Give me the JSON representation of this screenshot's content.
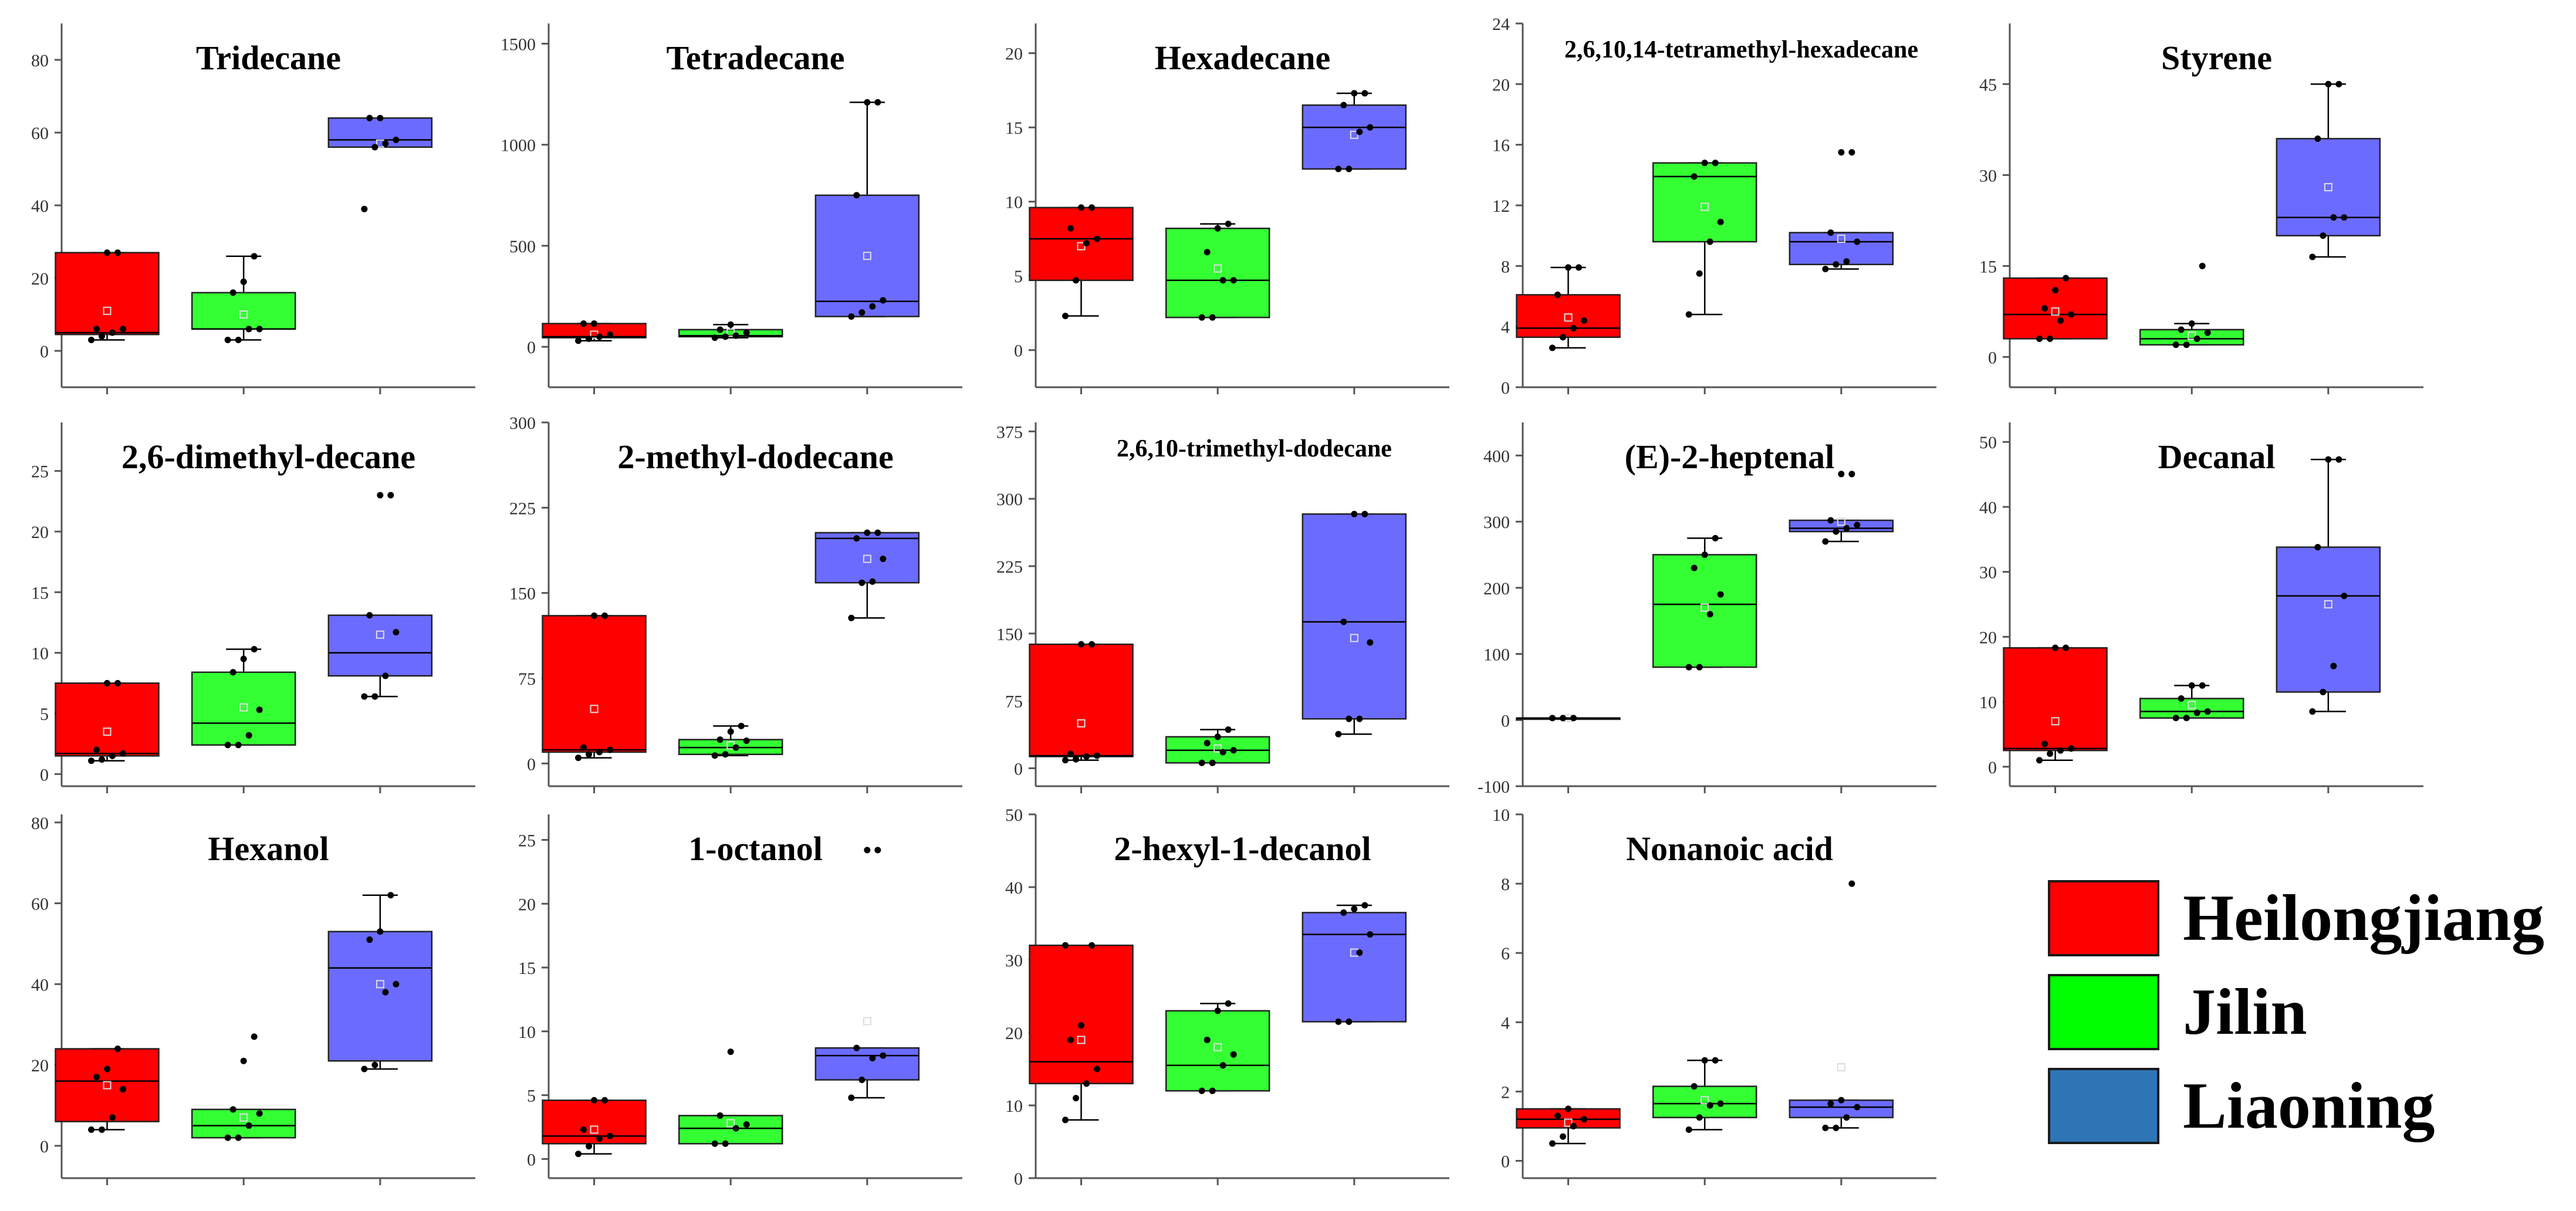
{
  "legend": [
    {
      "label": "Heilongjiang",
      "color": "#ff0000"
    },
    {
      "label": "Jilin",
      "color": "#00ff00"
    },
    {
      "label": "Liaoning",
      "color": "#2e75b6"
    }
  ],
  "box_colors": [
    "#ff0000",
    "#33ff33",
    "#6b6bff"
  ],
  "chart_data": [
    {
      "type": "box",
      "title": "Tridecane",
      "ylim": [
        -10,
        90
      ],
      "yticks": [
        0,
        20,
        40,
        60,
        80
      ],
      "groups": [
        "Heilongjiang",
        "Jilin",
        "Liaoning"
      ],
      "boxes": [
        {
          "min": 3,
          "q1": 4.5,
          "median": 5,
          "q3": 27,
          "max": 27,
          "mean": 11,
          "points": [
            3,
            4,
            5,
            6,
            6,
            27,
            27
          ]
        },
        {
          "min": 3,
          "q1": 6,
          "median": 6,
          "q3": 16,
          "max": 26,
          "mean": 10,
          "points": [
            3,
            3,
            6,
            6,
            16,
            19,
            26
          ]
        },
        {
          "min": 56,
          "q1": 56,
          "median": 58,
          "q3": 64,
          "max": 64,
          "mean": 57,
          "points": [
            39,
            56,
            57,
            58,
            64,
            64
          ]
        }
      ]
    },
    {
      "type": "box",
      "title": "Tetradecane",
      "ylim": [
        -200,
        1600
      ],
      "yticks": [
        0,
        500,
        1000,
        1500
      ],
      "groups": [
        "Heilongjiang",
        "Jilin",
        "Liaoning"
      ],
      "boxes": [
        {
          "min": 30,
          "q1": 45,
          "median": 50,
          "q3": 115,
          "max": 115,
          "mean": 60,
          "points": [
            30,
            40,
            50,
            60,
            115,
            115
          ]
        },
        {
          "min": 45,
          "q1": 50,
          "median": 55,
          "q3": 85,
          "max": 110,
          "mean": 70,
          "points": [
            45,
            50,
            55,
            70,
            85,
            110
          ]
        },
        {
          "min": 150,
          "q1": 150,
          "median": 225,
          "q3": 750,
          "max": 1210,
          "mean": 450,
          "points": [
            150,
            170,
            200,
            230,
            750,
            1210,
            1210
          ]
        }
      ]
    },
    {
      "type": "box",
      "title": "Hexadecane",
      "ylim": [
        -2.5,
        22
      ],
      "yticks": [
        0,
        5,
        10,
        15,
        20
      ],
      "groups": [
        "Heilongjiang",
        "Jilin",
        "Liaoning"
      ],
      "boxes": [
        {
          "min": 2.3,
          "q1": 4.7,
          "median": 7.5,
          "q3": 9.6,
          "max": 9.6,
          "mean": 7,
          "points": [
            2.3,
            4.7,
            7.2,
            7.5,
            8.2,
            9.6,
            9.6
          ]
        },
        {
          "min": 2.2,
          "q1": 2.2,
          "median": 4.7,
          "q3": 8.2,
          "max": 8.5,
          "mean": 5.5,
          "points": [
            2.2,
            2.2,
            4.7,
            4.7,
            6.6,
            8.2,
            8.5
          ]
        },
        {
          "min": 12.2,
          "q1": 12.2,
          "median": 15,
          "q3": 16.5,
          "max": 17.3,
          "mean": 14.5,
          "points": [
            12.2,
            12.2,
            14.7,
            15,
            16.5,
            17.3,
            17.3
          ]
        }
      ]
    },
    {
      "type": "box",
      "title": "2,6,10,14-tetramethyl-hexadecane",
      "ylim": [
        0,
        24
      ],
      "yticks": [
        0,
        4,
        8,
        12,
        16,
        20,
        24
      ],
      "groups": [
        "Heilongjiang",
        "Jilin",
        "Liaoning"
      ],
      "boxes": [
        {
          "min": 2.6,
          "q1": 3.3,
          "median": 3.9,
          "q3": 6.1,
          "max": 7.9,
          "mean": 4.6,
          "points": [
            2.6,
            3.3,
            3.9,
            4.4,
            6.1,
            7.9,
            7.9
          ]
        },
        {
          "min": 4.8,
          "q1": 9.6,
          "median": 13.9,
          "q3": 14.8,
          "max": 14.8,
          "mean": 11.9,
          "points": [
            4.8,
            7.5,
            9.6,
            10.9,
            13.9,
            14.8,
            14.8
          ]
        },
        {
          "min": 7.8,
          "q1": 8.1,
          "median": 9.6,
          "q3": 10.2,
          "max": 10.2,
          "mean": 9.8,
          "points": [
            7.8,
            8.1,
            8.3,
            9.6,
            10.2,
            15.5,
            15.5
          ]
        }
      ]
    },
    {
      "type": "box",
      "title": "Styrene",
      "ylim": [
        -5,
        55
      ],
      "yticks": [
        0,
        15,
        30,
        45
      ],
      "groups": [
        "Heilongjiang",
        "Jilin",
        "Liaoning"
      ],
      "boxes": [
        {
          "min": 3,
          "q1": 3,
          "median": 7,
          "q3": 13,
          "max": 13,
          "mean": 7.5,
          "points": [
            3,
            3,
            6,
            7,
            8,
            11,
            13
          ]
        },
        {
          "min": 2,
          "q1": 2,
          "median": 3,
          "q3": 4.5,
          "max": 5.5,
          "mean": 3.5,
          "points": [
            2,
            2,
            3,
            4,
            4.5,
            5.5,
            15
          ]
        },
        {
          "min": 16.5,
          "q1": 20,
          "median": 23,
          "q3": 36,
          "max": 45,
          "mean": 28,
          "points": [
            16.5,
            20,
            23,
            23,
            36,
            45,
            45
          ]
        }
      ]
    },
    {
      "type": "box",
      "title": "2,6-dimethyl-decane",
      "ylim": [
        -1,
        29
      ],
      "yticks": [
        0,
        5,
        10,
        15,
        20,
        25
      ],
      "groups": [
        "Heilongjiang",
        "Jilin",
        "Liaoning"
      ],
      "boxes": [
        {
          "min": 1.1,
          "q1": 1.5,
          "median": 1.7,
          "q3": 7.5,
          "max": 7.5,
          "mean": 3.5,
          "points": [
            1.1,
            1.2,
            1.5,
            1.7,
            2,
            7.5,
            7.5
          ]
        },
        {
          "min": 2.4,
          "q1": 2.4,
          "median": 4.2,
          "q3": 8.4,
          "max": 10.3,
          "mean": 5.5,
          "points": [
            2.4,
            2.4,
            3.2,
            5.3,
            8.4,
            9.5,
            10.3
          ]
        },
        {
          "min": 6.4,
          "q1": 8.1,
          "median": 10,
          "q3": 13.1,
          "max": 13.1,
          "mean": 11.5,
          "points": [
            6.4,
            6.4,
            8.1,
            11.7,
            13.1,
            23,
            23
          ]
        }
      ]
    },
    {
      "type": "box",
      "title": "2-methyl-dodecane",
      "ylim": [
        -20,
        300
      ],
      "yticks": [
        0,
        75,
        150,
        225,
        300
      ],
      "groups": [
        "Heilongjiang",
        "Jilin",
        "Liaoning"
      ],
      "boxes": [
        {
          "min": 5,
          "q1": 10,
          "median": 12,
          "q3": 130,
          "max": 130,
          "mean": 48,
          "points": [
            5,
            8,
            10,
            12,
            14,
            130,
            130
          ]
        },
        {
          "min": 7,
          "q1": 8,
          "median": 14,
          "q3": 21,
          "max": 33,
          "mean": 16,
          "points": [
            7,
            8,
            14,
            20,
            21,
            28,
            33
          ]
        },
        {
          "min": 128,
          "q1": 159,
          "median": 198,
          "q3": 203,
          "max": 203,
          "mean": 180,
          "points": [
            128,
            159,
            160,
            180,
            198,
            203,
            203
          ]
        }
      ]
    },
    {
      "type": "box",
      "title": "2,6,10-trimethyl-dodecane",
      "ylim": [
        -20,
        385
      ],
      "yticks": [
        0,
        75,
        150,
        225,
        300,
        375
      ],
      "groups": [
        "Heilongjiang",
        "Jilin",
        "Liaoning"
      ],
      "boxes": [
        {
          "min": 9,
          "q1": 13,
          "median": 14,
          "q3": 138,
          "max": 138,
          "mean": 50,
          "points": [
            9,
            10,
            13,
            14,
            16,
            138,
            138
          ]
        },
        {
          "min": 6,
          "q1": 6,
          "median": 20,
          "q3": 35,
          "max": 43,
          "mean": 22,
          "points": [
            6,
            6,
            18,
            20,
            28,
            35,
            43
          ]
        },
        {
          "min": 38,
          "q1": 55,
          "median": 163,
          "q3": 283,
          "max": 283,
          "mean": 145,
          "points": [
            38,
            55,
            55,
            140,
            163,
            283,
            283
          ]
        }
      ]
    },
    {
      "type": "box",
      "title": "(E)-2-heptenal",
      "ylim": [
        -100,
        450
      ],
      "yticks": [
        -100,
        0,
        100,
        200,
        300,
        400
      ],
      "groups": [
        "Heilongjiang",
        "Jilin",
        "Liaoning"
      ],
      "boxes": [
        {
          "min": 3,
          "q1": 3,
          "median": 3,
          "q3": 3,
          "max": 3,
          "mean": 3,
          "points": [
            3,
            3,
            3
          ]
        },
        {
          "min": 80,
          "q1": 80,
          "median": 175,
          "q3": 250,
          "max": 275,
          "mean": 170,
          "points": [
            80,
            80,
            160,
            190,
            230,
            250,
            275
          ]
        },
        {
          "min": 270,
          "q1": 285,
          "median": 290,
          "q3": 302,
          "max": 302,
          "mean": 300,
          "points": [
            270,
            285,
            290,
            295,
            302,
            372,
            372
          ]
        }
      ]
    },
    {
      "type": "box",
      "title": "Decanal",
      "ylim": [
        -3,
        53
      ],
      "yticks": [
        0,
        10,
        20,
        30,
        40,
        50
      ],
      "groups": [
        "Heilongjiang",
        "Jilin",
        "Liaoning"
      ],
      "boxes": [
        {
          "min": 1,
          "q1": 2.5,
          "median": 2.8,
          "q3": 18.3,
          "max": 18.3,
          "mean": 7,
          "points": [
            1,
            2,
            2.5,
            2.8,
            3.5,
            18.3,
            18.3
          ]
        },
        {
          "min": 7.5,
          "q1": 7.5,
          "median": 8.5,
          "q3": 10.5,
          "max": 12.5,
          "mean": 9.5,
          "points": [
            7.5,
            7.5,
            8.3,
            8.5,
            10.5,
            12.5,
            12.5
          ]
        },
        {
          "min": 8.5,
          "q1": 11.5,
          "median": 26.3,
          "q3": 33.8,
          "max": 47.3,
          "mean": 25,
          "points": [
            8.5,
            11.5,
            15.5,
            26.3,
            33.8,
            47.3,
            47.3
          ]
        }
      ]
    },
    {
      "type": "box",
      "title": "Hexanol",
      "ylim": [
        -8,
        82
      ],
      "yticks": [
        0,
        20,
        40,
        60,
        80
      ],
      "groups": [
        "Heilongjiang",
        "Jilin",
        "Liaoning"
      ],
      "boxes": [
        {
          "min": 4,
          "q1": 6,
          "median": 16,
          "q3": 24,
          "max": 24,
          "mean": 15,
          "points": [
            4,
            4,
            7,
            14,
            17,
            19,
            24
          ]
        },
        {
          "min": 2,
          "q1": 2,
          "median": 5,
          "q3": 9,
          "max": 9,
          "mean": 7,
          "points": [
            2,
            2,
            5,
            8,
            9,
            21,
            27
          ]
        },
        {
          "min": 19,
          "q1": 21,
          "median": 44,
          "q3": 53,
          "max": 62,
          "mean": 40,
          "points": [
            19,
            20,
            38,
            40,
            51,
            53,
            62
          ]
        }
      ]
    },
    {
      "type": "box",
      "title": "1-octanol",
      "ylim": [
        -1.5,
        27
      ],
      "yticks": [
        0,
        5,
        10,
        15,
        20,
        25
      ],
      "groups": [
        "Heilongjiang",
        "Jilin",
        "Liaoning"
      ],
      "boxes": [
        {
          "min": 0.4,
          "q1": 1.2,
          "median": 1.8,
          "q3": 4.6,
          "max": 4.6,
          "mean": 2.3,
          "points": [
            0.4,
            1,
            1.6,
            1.8,
            2.3,
            4.6,
            4.6
          ]
        },
        {
          "min": 1.2,
          "q1": 1.2,
          "median": 2.4,
          "q3": 3.4,
          "max": 3.4,
          "mean": 2.8,
          "points": [
            1.2,
            1.2,
            2.4,
            2.7,
            3.4,
            8.4
          ]
        },
        {
          "min": 4.8,
          "q1": 6.2,
          "median": 8.1,
          "q3": 8.7,
          "max": 8.7,
          "mean": 10.8,
          "points": [
            4.8,
            6.2,
            7.9,
            8.1,
            8.7,
            24.2,
            24.2
          ]
        }
      ]
    },
    {
      "type": "box",
      "title": "2-hexyl-1-decanol",
      "ylim": [
        0,
        50
      ],
      "yticks": [
        0,
        10,
        20,
        30,
        40,
        50
      ],
      "groups": [
        "Heilongjiang",
        "Jilin",
        "Liaoning"
      ],
      "boxes": [
        {
          "min": 8,
          "q1": 13,
          "median": 16,
          "q3": 32,
          "max": 32,
          "mean": 19,
          "points": [
            8,
            11,
            13,
            15,
            19,
            21,
            32,
            32
          ]
        },
        {
          "min": 12,
          "q1": 12,
          "median": 15.5,
          "q3": 23,
          "max": 24,
          "mean": 18,
          "points": [
            12,
            12,
            15.5,
            17,
            19,
            23,
            24
          ]
        },
        {
          "min": 21.5,
          "q1": 21.5,
          "median": 33.5,
          "q3": 36.5,
          "max": 37.5,
          "mean": 31,
          "points": [
            21.5,
            21.5,
            31,
            33.5,
            36.5,
            37,
            37.5
          ]
        }
      ]
    },
    {
      "type": "box",
      "title": "Nonanoic acid",
      "ylim": [
        -0.5,
        10
      ],
      "yticks": [
        0,
        2,
        4,
        6,
        8,
        10
      ],
      "groups": [
        "Heilongjiang",
        "Jilin",
        "Liaoning"
      ],
      "boxes": [
        {
          "min": 0.5,
          "q1": 0.95,
          "median": 1.2,
          "q3": 1.5,
          "max": 1.5,
          "mean": 1.1,
          "points": [
            0.5,
            0.7,
            1,
            1.2,
            1.3,
            1.5
          ]
        },
        {
          "min": 0.9,
          "q1": 1.25,
          "median": 1.65,
          "q3": 2.15,
          "max": 2.9,
          "mean": 1.75,
          "points": [
            0.9,
            1.25,
            1.6,
            1.65,
            2.15,
            2.9,
            2.9
          ]
        },
        {
          "min": 0.95,
          "q1": 1.25,
          "median": 1.55,
          "q3": 1.75,
          "max": 1.75,
          "mean": 2.7,
          "points": [
            0.95,
            0.95,
            1.25,
            1.55,
            1.65,
            1.75,
            8
          ]
        }
      ]
    }
  ]
}
